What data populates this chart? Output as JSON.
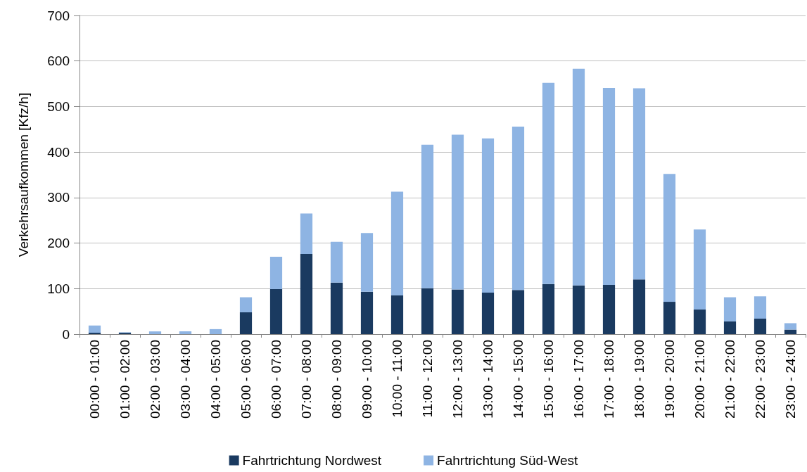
{
  "chart_data": {
    "type": "bar",
    "stacked": true,
    "ylabel": "Verkehrsaufkommen [Kfz/h]",
    "categories": [
      "00:00 - 01:00",
      "01:00 - 02:00",
      "02:00 - 03:00",
      "03:00 - 04:00",
      "04:00 - 05:00",
      "05:00 - 06:00",
      "06:00 - 07:00",
      "07:00 - 08:00",
      "08:00 - 09:00",
      "09:00 - 10:00",
      "10:00 - 11:00",
      "11:00 - 12:00",
      "12:00 - 13:00",
      "13:00 - 14:00",
      "14:00 - 15:00",
      "15:00 - 16:00",
      "16:00 - 17:00",
      "17:00 - 18:00",
      "18:00 - 19:00",
      "19:00 - 20:00",
      "20:00 - 21:00",
      "21:00 - 22:00",
      "22:00 - 23:00",
      "23:00 - 24:00"
    ],
    "series": [
      {
        "name": "Fahrtrichtung Nordwest",
        "color": "#1a3a60",
        "values": [
          3,
          3,
          0,
          0,
          0,
          48,
          99,
          176,
          113,
          93,
          85,
          101,
          98,
          91,
          97,
          110,
          107,
          108,
          120,
          71,
          54,
          28,
          34,
          10
        ]
      },
      {
        "name": "Fahrtrichtung Süd-West",
        "color": "#8eb4e3",
        "values": [
          16,
          1,
          6,
          6,
          11,
          33,
          71,
          89,
          90,
          129,
          228,
          315,
          340,
          339,
          359,
          442,
          476,
          433,
          420,
          281,
          176,
          53,
          49,
          14
        ]
      }
    ],
    "ylim": [
      0,
      700
    ],
    "yticks": [
      0,
      100,
      200,
      300,
      400,
      500,
      600,
      700
    ],
    "grid": "y",
    "legend": "bottom"
  }
}
